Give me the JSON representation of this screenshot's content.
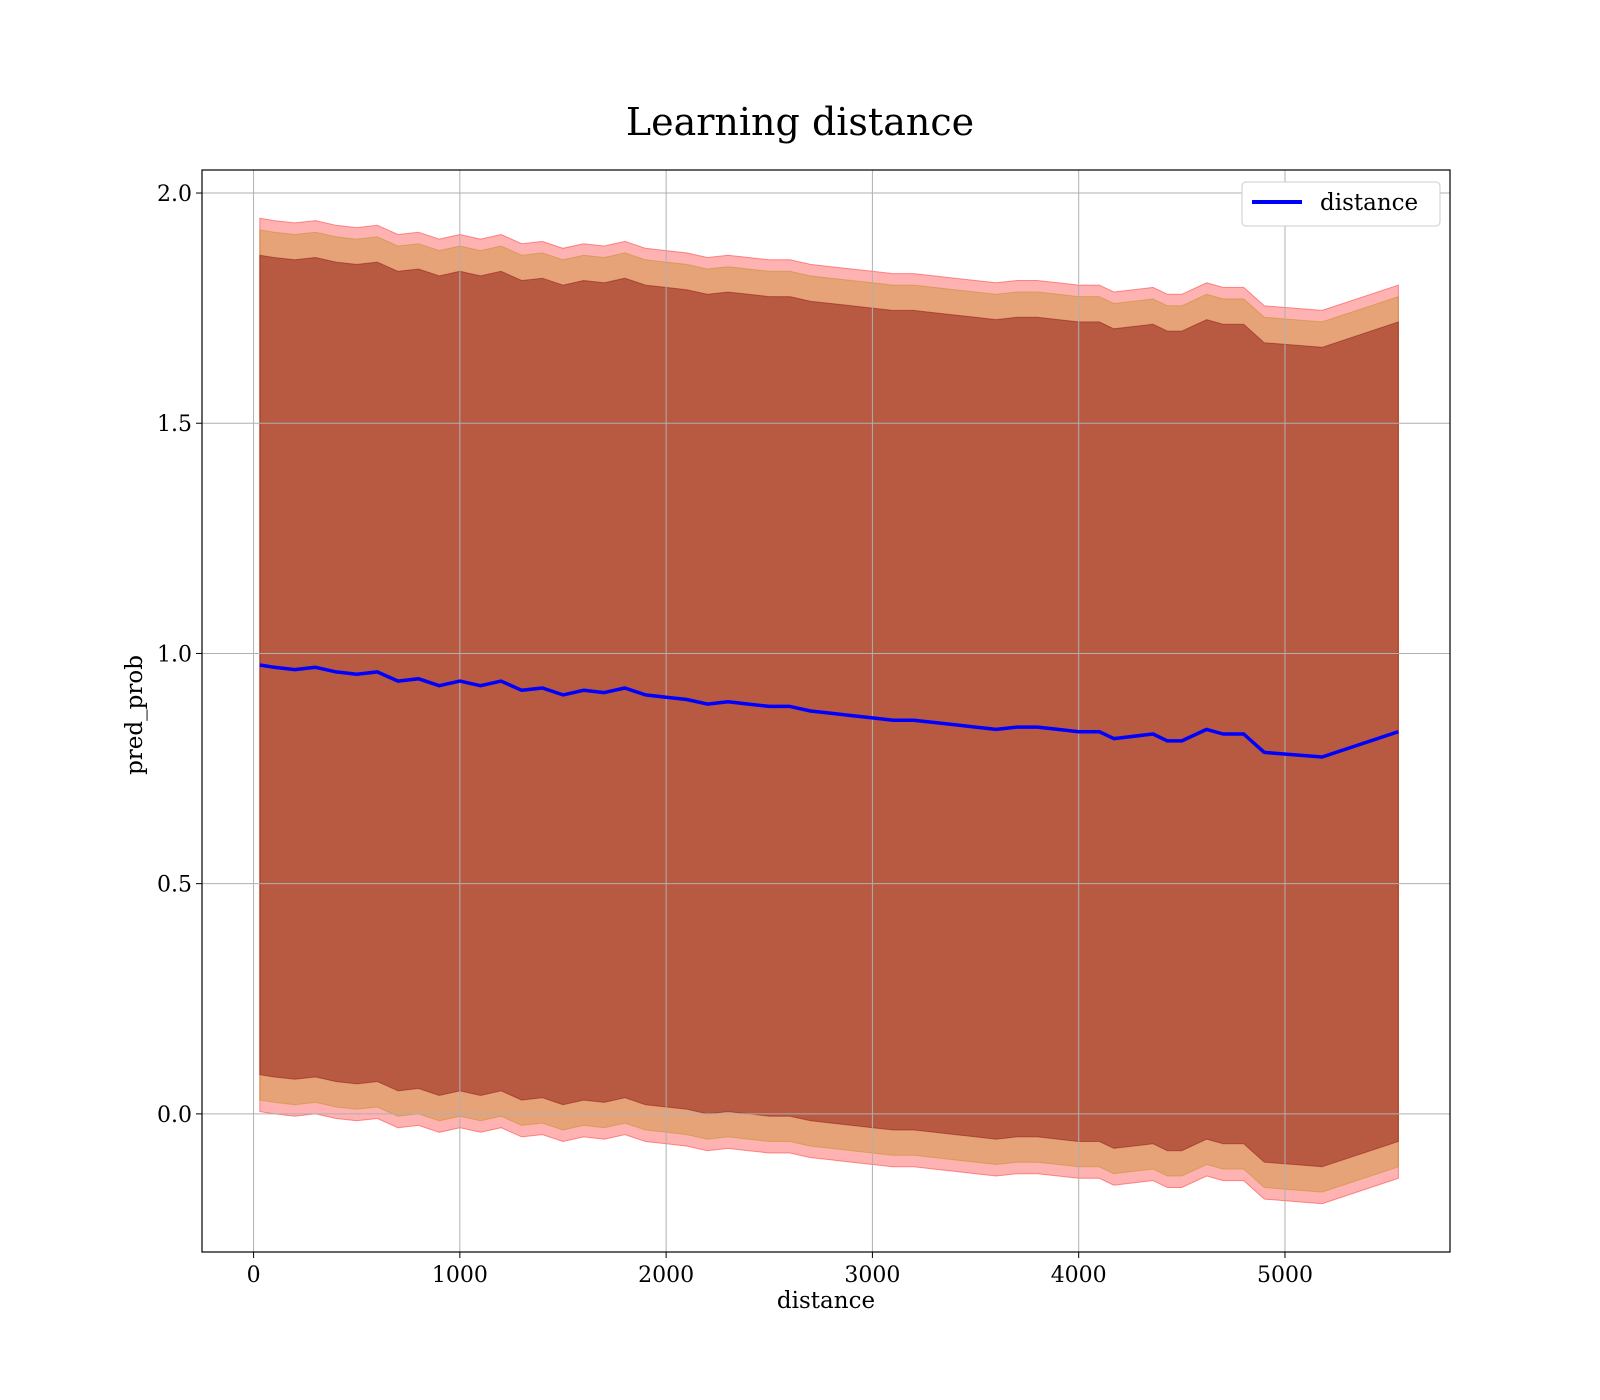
{
  "chart_data": {
    "type": "line",
    "title": "Learning distance",
    "xlabel": "distance",
    "ylabel": "pred_prob",
    "xlim": [
      -250,
      5800
    ],
    "ylim": [
      -0.3,
      2.05
    ],
    "xticks": [
      0,
      1000,
      2000,
      3000,
      4000,
      5000
    ],
    "yticks": [
      0.0,
      0.5,
      1.0,
      1.5,
      2.0
    ],
    "xtick_labels": [
      "0",
      "1000",
      "2000",
      "3000",
      "4000",
      "5000"
    ],
    "ytick_labels": [
      "0.0",
      "0.5",
      "1.0",
      "1.5",
      "2.0"
    ],
    "grid": true,
    "legend": {
      "position": "top-right",
      "entries": [
        "distance"
      ]
    },
    "colors": {
      "line": "#0000ff",
      "band_outer": "#ff0000",
      "band_middle": "#b8860b",
      "band_inner": "#800000",
      "grid": "#b0b0b0"
    },
    "x": [
      30,
      100,
      200,
      300,
      400,
      500,
      600,
      700,
      800,
      900,
      1000,
      1100,
      1200,
      1300,
      1400,
      1500,
      1600,
      1700,
      1800,
      1900,
      2000,
      2100,
      2200,
      2300,
      2400,
      2500,
      2600,
      2700,
      2800,
      2900,
      3000,
      3100,
      3200,
      3300,
      3400,
      3500,
      3600,
      3700,
      3800,
      3900,
      4000,
      4100,
      4170,
      4360,
      4430,
      4500,
      4620,
      4700,
      4800,
      4900,
      5180,
      5550
    ],
    "series": [
      {
        "name": "distance",
        "values": [
          0.975,
          0.97,
          0.965,
          0.97,
          0.96,
          0.955,
          0.96,
          0.94,
          0.945,
          0.93,
          0.94,
          0.93,
          0.94,
          0.92,
          0.925,
          0.91,
          0.92,
          0.915,
          0.925,
          0.91,
          0.905,
          0.9,
          0.89,
          0.895,
          0.89,
          0.885,
          0.885,
          0.875,
          0.87,
          0.865,
          0.86,
          0.855,
          0.855,
          0.85,
          0.845,
          0.84,
          0.835,
          0.84,
          0.84,
          0.835,
          0.83,
          0.83,
          0.815,
          0.825,
          0.81,
          0.81,
          0.835,
          0.825,
          0.825,
          0.785,
          0.775,
          0.83
        ],
        "band_inner_halfwidth": [
          0.89,
          0.89,
          0.89,
          0.89,
          0.89,
          0.89,
          0.89,
          0.89,
          0.89,
          0.89,
          0.89,
          0.89,
          0.89,
          0.89,
          0.89,
          0.89,
          0.89,
          0.89,
          0.89,
          0.89,
          0.89,
          0.89,
          0.89,
          0.89,
          0.89,
          0.89,
          0.89,
          0.89,
          0.89,
          0.89,
          0.89,
          0.89,
          0.89,
          0.89,
          0.89,
          0.89,
          0.89,
          0.89,
          0.89,
          0.89,
          0.89,
          0.89,
          0.89,
          0.89,
          0.89,
          0.89,
          0.89,
          0.89,
          0.89,
          0.89,
          0.89,
          0.89
        ],
        "band_middle_halfwidth": [
          0.945,
          0.945,
          0.945,
          0.945,
          0.945,
          0.945,
          0.945,
          0.945,
          0.945,
          0.945,
          0.945,
          0.945,
          0.945,
          0.945,
          0.945,
          0.945,
          0.945,
          0.945,
          0.945,
          0.945,
          0.945,
          0.945,
          0.945,
          0.945,
          0.945,
          0.945,
          0.945,
          0.945,
          0.945,
          0.945,
          0.945,
          0.945,
          0.945,
          0.945,
          0.945,
          0.945,
          0.945,
          0.945,
          0.945,
          0.945,
          0.945,
          0.945,
          0.945,
          0.945,
          0.945,
          0.945,
          0.945,
          0.945,
          0.945,
          0.945,
          0.945,
          0.945
        ],
        "band_outer_halfwidth": [
          0.97,
          0.97,
          0.97,
          0.97,
          0.97,
          0.97,
          0.97,
          0.97,
          0.97,
          0.97,
          0.97,
          0.97,
          0.97,
          0.97,
          0.97,
          0.97,
          0.97,
          0.97,
          0.97,
          0.97,
          0.97,
          0.97,
          0.97,
          0.97,
          0.97,
          0.97,
          0.97,
          0.97,
          0.97,
          0.97,
          0.97,
          0.97,
          0.97,
          0.97,
          0.97,
          0.97,
          0.97,
          0.97,
          0.97,
          0.97,
          0.97,
          0.97,
          0.97,
          0.97,
          0.97,
          0.97,
          0.97,
          0.97,
          0.97,
          0.97,
          0.97,
          0.97
        ]
      }
    ]
  }
}
